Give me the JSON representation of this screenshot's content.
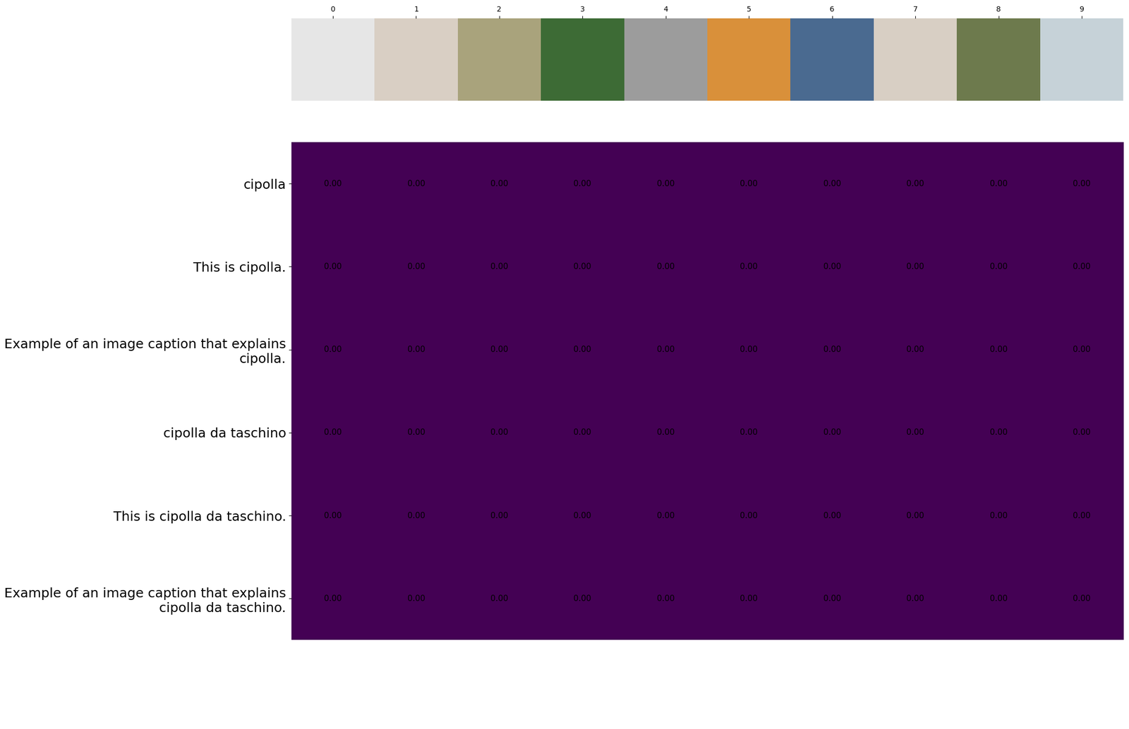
{
  "chart_data": {
    "type": "heatmap",
    "categories": [
      "cipolla",
      "This is cipolla.",
      "Example of an image caption that explains cipolla.",
      "cipolla da taschino",
      "This is cipolla da taschino.",
      "Example of an image caption that explains cipolla da taschino."
    ],
    "xticks": [
      0,
      1,
      2,
      3,
      4,
      5,
      6,
      7,
      8,
      9
    ],
    "cells": [
      [
        0,
        0,
        0,
        0,
        0,
        0,
        0,
        0,
        0,
        0
      ],
      [
        0,
        0,
        0,
        0,
        0,
        0,
        0,
        0,
        0,
        0
      ],
      [
        0,
        0,
        0,
        0,
        0,
        0,
        0,
        0,
        0,
        0
      ],
      [
        0,
        0,
        0,
        0,
        0,
        0,
        0,
        0,
        0,
        0
      ],
      [
        0,
        0,
        0,
        0,
        0,
        0,
        0,
        0,
        0,
        0
      ],
      [
        0,
        0,
        0,
        0,
        0,
        0,
        0,
        0,
        0,
        0
      ]
    ],
    "value_labels": [
      [
        "0.00",
        "0.00",
        "0.00",
        "0.00",
        "0.00",
        "0.00",
        "0.00",
        "0.00",
        "0.00",
        "0.00"
      ],
      [
        "0.00",
        "0.00",
        "0.00",
        "0.00",
        "0.00",
        "0.00",
        "0.00",
        "0.00",
        "0.00",
        "0.00"
      ],
      [
        "0.00",
        "0.00",
        "0.00",
        "0.00",
        "0.00",
        "0.00",
        "0.00",
        "0.00",
        "0.00",
        "0.00"
      ],
      [
        "0.00",
        "0.00",
        "0.00",
        "0.00",
        "0.00",
        "0.00",
        "0.00",
        "0.00",
        "0.00",
        "0.00"
      ],
      [
        "0.00",
        "0.00",
        "0.00",
        "0.00",
        "0.00",
        "0.00",
        "0.00",
        "0.00",
        "0.00",
        "0.00"
      ],
      [
        "0.00",
        "0.00",
        "0.00",
        "0.00",
        "0.00",
        "0.00",
        "0.00",
        "0.00",
        "0.00",
        "0.00"
      ]
    ],
    "color": "viridis",
    "data_labels": true
  }
}
